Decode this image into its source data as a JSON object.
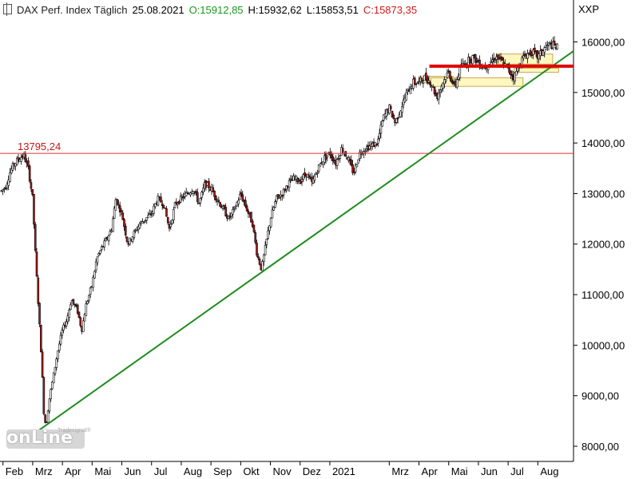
{
  "header": {
    "symbol": "DAX Perf. Index Täglich",
    "date": "25.08.2021",
    "open": "O:15912,85",
    "high": "H:15932,62",
    "low": "L:15853,51",
    "close": "C:15873,35"
  },
  "unit_label": "XXP",
  "logo": {
    "text": "onLine",
    "brand": "Tradesignal®"
  },
  "colors": {
    "up": "#ffffff",
    "down": "#b01a1a",
    "trend": "#1e8c1e",
    "resistance": "#e00000",
    "box_fill": "#fff7c2",
    "box_stroke": "#c8a850",
    "ref_line": "#e03030"
  },
  "chart_data": {
    "type": "candlestick",
    "ylim": [
      7700,
      16450
    ],
    "y_ticks": [
      "16000,00",
      "15000,00",
      "14000,00",
      "13000,00",
      "12000,00",
      "11000,00",
      "10000,00",
      "9000,00",
      "8000,00"
    ],
    "y_tick_values": [
      16000,
      15000,
      14000,
      13000,
      12000,
      11000,
      10000,
      9000,
      8000
    ],
    "x_labels": [
      "Feb",
      "Mrz",
      "Apr",
      "Mai",
      "Jun",
      "Jul",
      "Aug",
      "Sep",
      "Okt",
      "Nov",
      "Dez",
      "2021",
      "Mrz",
      "Apr",
      "Mai",
      "Jun",
      "Jul",
      "Aug"
    ],
    "x_label_months": [
      1,
      2,
      3,
      4,
      5,
      6,
      7,
      8,
      9,
      10,
      11,
      12,
      14,
      15,
      16,
      17,
      18,
      19
    ],
    "x_range_months": [
      0.9,
      20.2
    ],
    "reference_line": {
      "value": 13795.24,
      "label": "13795,24"
    },
    "trend_line": {
      "from": [
        2.05,
        8250
      ],
      "to": [
        20.2,
        15820
      ]
    },
    "resistance_line": {
      "from": [
        15.35,
        15520
      ],
      "to": [
        20.2,
        15520
      ]
    },
    "zones": [
      {
        "x0": 15.0,
        "x1": 16.15,
        "y0": 15190,
        "y1": 15320
      },
      {
        "x0": 15.4,
        "x1": 18.5,
        "y0": 15120,
        "y1": 15290
      },
      {
        "x0": 17.6,
        "x1": 19.5,
        "y0": 15560,
        "y1": 15760
      },
      {
        "x0": 18.2,
        "x1": 19.7,
        "y0": 15400,
        "y1": 15480
      }
    ],
    "price_path": [
      [
        0.95,
        13050
      ],
      [
        1.1,
        13150
      ],
      [
        1.25,
        13450
      ],
      [
        1.4,
        13600
      ],
      [
        1.55,
        13700
      ],
      [
        1.7,
        13760
      ],
      [
        1.85,
        13500
      ],
      [
        2.0,
        12900
      ],
      [
        2.1,
        11700
      ],
      [
        2.2,
        10700
      ],
      [
        2.3,
        9700
      ],
      [
        2.38,
        8600
      ],
      [
        2.45,
        8400
      ],
      [
        2.55,
        8900
      ],
      [
        2.7,
        9400
      ],
      [
        2.85,
        9900
      ],
      [
        3.0,
        10300
      ],
      [
        3.15,
        10500
      ],
      [
        3.3,
        10900
      ],
      [
        3.5,
        10700
      ],
      [
        3.65,
        10300
      ],
      [
        3.8,
        10800
      ],
      [
        4.0,
        11200
      ],
      [
        4.15,
        11700
      ],
      [
        4.3,
        11900
      ],
      [
        4.5,
        12100
      ],
      [
        4.65,
        12300
      ],
      [
        4.8,
        12900
      ],
      [
        5.0,
        12600
      ],
      [
        5.2,
        12000
      ],
      [
        5.4,
        12200
      ],
      [
        5.6,
        12400
      ],
      [
        5.8,
        12500
      ],
      [
        6.0,
        12600
      ],
      [
        6.2,
        12900
      ],
      [
        6.4,
        12800
      ],
      [
        6.6,
        12300
      ],
      [
        6.8,
        12800
      ],
      [
        7.0,
        12900
      ],
      [
        7.2,
        13000
      ],
      [
        7.4,
        13100
      ],
      [
        7.6,
        12800
      ],
      [
        7.8,
        13200
      ],
      [
        8.0,
        13100
      ],
      [
        8.2,
        12900
      ],
      [
        8.4,
        12700
      ],
      [
        8.6,
        12500
      ],
      [
        8.8,
        12700
      ],
      [
        9.0,
        13000
      ],
      [
        9.2,
        12700
      ],
      [
        9.4,
        12400
      ],
      [
        9.55,
        11800
      ],
      [
        9.7,
        11500
      ],
      [
        9.85,
        12000
      ],
      [
        10.0,
        12500
      ],
      [
        10.2,
        12900
      ],
      [
        10.4,
        13000
      ],
      [
        10.6,
        13200
      ],
      [
        10.8,
        13300
      ],
      [
        11.0,
        13250
      ],
      [
        11.2,
        13400
      ],
      [
        11.4,
        13200
      ],
      [
        11.6,
        13500
      ],
      [
        11.8,
        13700
      ],
      [
        12.0,
        13800
      ],
      [
        12.2,
        13600
      ],
      [
        12.4,
        13900
      ],
      [
        12.6,
        13700
      ],
      [
        12.8,
        13400
      ],
      [
        13.0,
        13800
      ],
      [
        13.2,
        13900
      ],
      [
        13.4,
        13950
      ],
      [
        13.6,
        14000
      ],
      [
        13.8,
        14500
      ],
      [
        14.0,
        14700
      ],
      [
        14.2,
        14400
      ],
      [
        14.4,
        14700
      ],
      [
        14.6,
        15000
      ],
      [
        14.8,
        15200
      ],
      [
        15.0,
        15200
      ],
      [
        15.2,
        15300
      ],
      [
        15.4,
        15200
      ],
      [
        15.6,
        14900
      ],
      [
        15.8,
        15200
      ],
      [
        16.0,
        15400
      ],
      [
        16.2,
        15100
      ],
      [
        16.4,
        15500
      ],
      [
        16.6,
        15600
      ],
      [
        16.8,
        15700
      ],
      [
        17.0,
        15600
      ],
      [
        17.2,
        15500
      ],
      [
        17.4,
        15600
      ],
      [
        17.6,
        15700
      ],
      [
        17.8,
        15600
      ],
      [
        18.0,
        15450
      ],
      [
        18.2,
        15300
      ],
      [
        18.4,
        15600
      ],
      [
        18.6,
        15750
      ],
      [
        18.8,
        15800
      ],
      [
        19.0,
        15700
      ],
      [
        19.2,
        15850
      ],
      [
        19.4,
        15950
      ],
      [
        19.55,
        15920
      ],
      [
        19.7,
        15880
      ]
    ]
  }
}
